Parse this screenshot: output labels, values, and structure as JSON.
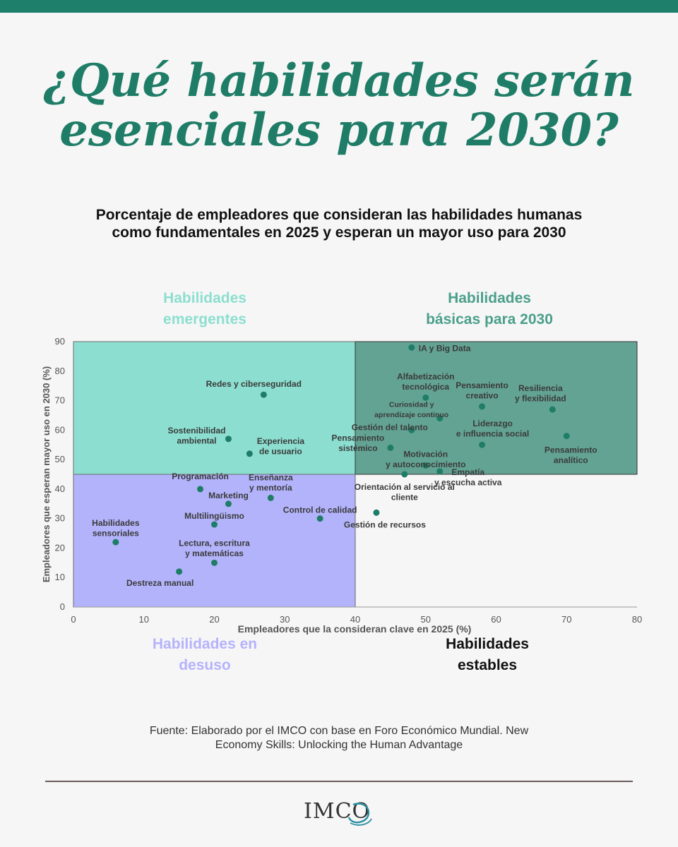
{
  "title_lines": [
    "¿Qué habilidades serán",
    "esenciales para 2030?"
  ],
  "subtitle_lines": [
    "Porcentaje de empleadores que consideran las habilidades humanas",
    "como fundamentales en 2025 y esperan un mayor uso para 2030"
  ],
  "quadrants": {
    "emerging": {
      "lines": [
        "Habilidades",
        "emergentes"
      ],
      "color": "#8cdfd0"
    },
    "basic": {
      "lines": [
        "Habilidades",
        "básicas para 2030"
      ],
      "color": "#3f8e7a"
    },
    "disuse": {
      "lines": [
        "Habilidades en",
        "desuso"
      ],
      "color": "#b3b3fc"
    },
    "stable": {
      "lines": [
        "Habilidades",
        "estables"
      ],
      "color": "#111111"
    }
  },
  "chart_data": {
    "type": "scatter",
    "xlabel": "Empleadores que la consideran clave en 2025 (%)",
    "ylabel": "Empleadores que esperan mayor uso en 2030 (%)",
    "xlim": [
      0,
      80
    ],
    "ylim": [
      0,
      90
    ],
    "x_ticks": [
      0,
      10,
      20,
      30,
      40,
      50,
      60,
      70,
      80
    ],
    "y_ticks": [
      0,
      10,
      20,
      30,
      40,
      50,
      60,
      70,
      80,
      90
    ],
    "x_threshold": 40,
    "y_threshold": 45,
    "point_color": "#1f7d67",
    "points": [
      {
        "lines": [
          "IA y Big Data"
        ],
        "x": 48,
        "y": 88
      },
      {
        "lines": [
          "Alfabetización",
          "tecnológica"
        ],
        "x": 50,
        "y": 71
      },
      {
        "lines": [
          "Pensamiento",
          "creativo"
        ],
        "x": 58,
        "y": 68
      },
      {
        "lines": [
          "Resiliencia",
          "y flexibilidad"
        ],
        "x": 68,
        "y": 67
      },
      {
        "lines": [
          "Curiosidad y",
          "aprendizaje continuo"
        ],
        "x": 52,
        "y": 64
      },
      {
        "lines": [
          "Gestión del talento"
        ],
        "x": 48,
        "y": 60
      },
      {
        "lines": [
          "Liderazgo",
          "e influencia social"
        ],
        "x": 58,
        "y": 55
      },
      {
        "lines": [
          "Pensamiento",
          "analítico"
        ],
        "x": 70,
        "y": 58
      },
      {
        "lines": [
          "Pensamiento",
          "sistémico"
        ],
        "x": 45,
        "y": 54
      },
      {
        "lines": [
          "Motivación",
          "y autoconocimiento"
        ],
        "x": 50,
        "y": 48
      },
      {
        "lines": [
          "Empatía",
          "y escucha activa"
        ],
        "x": 52,
        "y": 46
      },
      {
        "lines": [
          "Orientación al servicio al",
          "cliente"
        ],
        "x": 47,
        "y": 45
      },
      {
        "lines": [
          "Gestión de recursos"
        ],
        "x": 43,
        "y": 32
      },
      {
        "lines": [
          "Redes y ciberseguridad"
        ],
        "x": 27,
        "y": 72
      },
      {
        "lines": [
          "Sostenibilidad",
          "ambiental"
        ],
        "x": 22,
        "y": 57
      },
      {
        "lines": [
          "Experiencia",
          "de usuario"
        ],
        "x": 25,
        "y": 52
      },
      {
        "lines": [
          "Programación"
        ],
        "x": 18,
        "y": 40
      },
      {
        "lines": [
          "Enseñanza",
          "y mentoría"
        ],
        "x": 28,
        "y": 37
      },
      {
        "lines": [
          "Marketing"
        ],
        "x": 22,
        "y": 35
      },
      {
        "lines": [
          "Control de calidad"
        ],
        "x": 35,
        "y": 30
      },
      {
        "lines": [
          "Multilingüismo"
        ],
        "x": 20,
        "y": 28
      },
      {
        "lines": [
          "Habilidades",
          "sensoriales"
        ],
        "x": 6,
        "y": 22
      },
      {
        "lines": [
          "Lectura, escritura",
          "y matemáticas"
        ],
        "x": 20,
        "y": 15
      },
      {
        "lines": [
          "Destreza manual"
        ],
        "x": 15,
        "y": 12
      }
    ]
  },
  "source_lines": [
    "Fuente: Elaborado por el IMCO con base en Foro Económico Mundial. New",
    "Economy Skills: Unlocking the Human Advantage"
  ],
  "logo_text": "IMCO"
}
